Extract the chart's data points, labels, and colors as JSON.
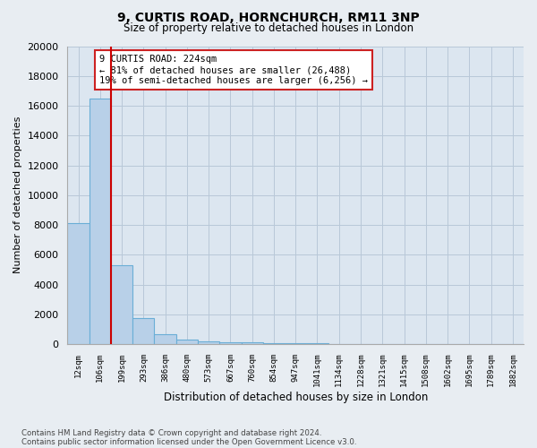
{
  "title1": "9, CURTIS ROAD, HORNCHURCH, RM11 3NP",
  "title2": "Size of property relative to detached houses in London",
  "xlabel": "Distribution of detached houses by size in London",
  "ylabel": "Number of detached properties",
  "bin_labels": [
    "12sqm",
    "106sqm",
    "199sqm",
    "293sqm",
    "386sqm",
    "480sqm",
    "573sqm",
    "667sqm",
    "760sqm",
    "854sqm",
    "947sqm",
    "1041sqm",
    "1134sqm",
    "1228sqm",
    "1321sqm",
    "1415sqm",
    "1508sqm",
    "1602sqm",
    "1695sqm",
    "1789sqm",
    "1882sqm"
  ],
  "bar_heights": [
    8100,
    16500,
    5300,
    1750,
    650,
    320,
    190,
    150,
    110,
    80,
    60,
    45,
    35,
    28,
    22,
    18,
    14,
    11,
    9,
    7,
    6
  ],
  "bar_color": "#b8d0e8",
  "bar_edge_color": "#6aaed6",
  "vline_color": "#cc0000",
  "annotation_text": "9 CURTIS ROAD: 224sqm\n← 81% of detached houses are smaller (26,488)\n19% of semi-detached houses are larger (6,256) →",
  "annotation_box_color": "white",
  "annotation_box_edge_color": "#cc2222",
  "ylim": [
    0,
    20000
  ],
  "yticks": [
    0,
    2000,
    4000,
    6000,
    8000,
    10000,
    12000,
    14000,
    16000,
    18000,
    20000
  ],
  "footer1": "Contains HM Land Registry data © Crown copyright and database right 2024.",
  "footer2": "Contains public sector information licensed under the Open Government Licence v3.0.",
  "bg_color": "#e8edf2",
  "plot_bg_color": "#dce6f0",
  "grid_color": "#b8c8d8"
}
